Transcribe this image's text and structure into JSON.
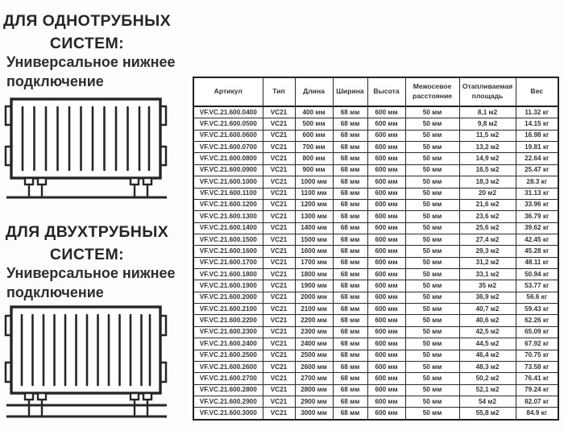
{
  "colors": {
    "text": "#2b2b2b",
    "table_border": "#222222",
    "background": "#fdfdfd"
  },
  "left_panel": {
    "section_one": {
      "title": "ДЛЯ ОДНОТРУБНЫХ СИСТЕМ:",
      "subtitle": "Универсальное нижнее подключение"
    },
    "section_two": {
      "title": "ДЛЯ ДВУХТРУБНЫХ СИСТЕМ:",
      "subtitle": "Универсальное нижнее подключение"
    }
  },
  "table": {
    "headers": [
      "Артикул",
      "Тип",
      "Длина",
      "Ширина",
      "Высота",
      "Межосевое расстояние",
      "Отапливаемая площадь",
      "Вес"
    ],
    "rows": [
      [
        "VF.VC.21.600.0400",
        "VC21",
        "400 мм",
        "68 мм",
        "600 мм",
        "50 мм",
        "8,1 м2",
        "11.32 кг"
      ],
      [
        "VF.VC.21.600.0500",
        "VC21",
        "500 мм",
        "68 мм",
        "600 мм",
        "50 мм",
        "9,8 м2",
        "14.15 кг"
      ],
      [
        "VF.VC.21.600.0600",
        "VC21",
        "600 мм",
        "68 мм",
        "600 мм",
        "50 мм",
        "11,5 м2",
        "16.98 кг"
      ],
      [
        "VF.VC.21.600.0700",
        "VC21",
        "700 мм",
        "68 мм",
        "600 мм",
        "50 мм",
        "13,2 м2",
        "19.81 кг"
      ],
      [
        "VF.VC.21.600.0800",
        "VC21",
        "800 мм",
        "68 мм",
        "600 мм",
        "50 мм",
        "14,9 м2",
        "22.64 кг"
      ],
      [
        "VF.VC.21.600.0900",
        "VC21",
        "900 мм",
        "68 мм",
        "600 мм",
        "50 мм",
        "16,5 м2",
        "25.47 кг"
      ],
      [
        "VF.VC.21.600.1000",
        "VC21",
        "1000 мм",
        "68 мм",
        "600 мм",
        "50 мм",
        "18,3 м2",
        "28.3 кг"
      ],
      [
        "VF.VC.21.600.1100",
        "VC21",
        "1100 мм",
        "68 мм",
        "600 мм",
        "50 мм",
        "20 м2",
        "31.13 кг"
      ],
      [
        "VF.VC.21.600.1200",
        "VC21",
        "1200 мм",
        "68 мм",
        "600 мм",
        "50 мм",
        "21,6 м2",
        "33.96 кг"
      ],
      [
        "VF.VC.21.600.1300",
        "VC21",
        "1300 мм",
        "68 мм",
        "600 мм",
        "50 мм",
        "23,6 м2",
        "36.79 кг"
      ],
      [
        "VF.VC.21.600.1400",
        "VC21",
        "1400 мм",
        "68 мм",
        "600 мм",
        "50 мм",
        "25,6 м2",
        "39.62 кг"
      ],
      [
        "VF.VC.21.600.1500",
        "VC21",
        "1500 мм",
        "68 мм",
        "600 мм",
        "50 мм",
        "27,4 м2",
        "42.45 кг"
      ],
      [
        "VF.VC.21.600.1600",
        "VC21",
        "1600 мм",
        "68 мм",
        "600 мм",
        "50 мм",
        "29,3 м2",
        "45.28 кг"
      ],
      [
        "VF.VC.21.600.1700",
        "VC21",
        "1700 мм",
        "68 мм",
        "600 мм",
        "50 мм",
        "31,2 м2",
        "48.11 кг"
      ],
      [
        "VF.VC.21.600.1800",
        "VC21",
        "1800 мм",
        "68 мм",
        "600 мм",
        "50 мм",
        "33,1 м2",
        "50.94 кг"
      ],
      [
        "VF.VC.21.600.1900",
        "VC21",
        "1900 мм",
        "68 мм",
        "600 мм",
        "50 мм",
        "35 м2",
        "53.77 кг"
      ],
      [
        "VF.VC.21.600.2000",
        "VC21",
        "2000 мм",
        "68 мм",
        "600 мм",
        "50 мм",
        "36,9 м2",
        "56.6 кг"
      ],
      [
        "VF.VC.21.600.2100",
        "VC21",
        "2100 мм",
        "68 мм",
        "600 мм",
        "50 мм",
        "40,7 м2",
        "59.43 кг"
      ],
      [
        "VF.VC.21.600.2200",
        "VC21",
        "2200 мм",
        "68 мм",
        "600 мм",
        "50 мм",
        "40,6 м2",
        "62.26 кг"
      ],
      [
        "VF.VC.21.600.2300",
        "VC21",
        "2300 мм",
        "68 мм",
        "600 мм",
        "50 мм",
        "42,5 м2",
        "65.09 кг"
      ],
      [
        "VF.VC.21.600.2400",
        "VC21",
        "2400 мм",
        "68 мм",
        "600 мм",
        "50 мм",
        "44,5 м2",
        "67.92 кг"
      ],
      [
        "VF.VC.21.600.2500",
        "VC21",
        "2500 мм",
        "68 мм",
        "600 мм",
        "50 мм",
        "46,4 м2",
        "70.75 кг"
      ],
      [
        "VF.VC.21.600.2600",
        "VC21",
        "2600 мм",
        "68 мм",
        "600 мм",
        "50 мм",
        "48,3 м2",
        "73.58 кг"
      ],
      [
        "VF.VC.21.600.2700",
        "VC21",
        "2700 мм",
        "68 мм",
        "600 мм",
        "50 мм",
        "50,2 м2",
        "76.41 кг"
      ],
      [
        "VF.VC.21.600.2800",
        "VC21",
        "2800 мм",
        "68 мм",
        "600 мм",
        "50 мм",
        "52,1 м2",
        "79.24 кг"
      ],
      [
        "VF.VC.21.600.2900",
        "VC21",
        "2900 мм",
        "68 мм",
        "600 мм",
        "50 мм",
        "54 м2",
        "82.07 кг"
      ],
      [
        "VF.VC.21.600.3000",
        "VC21",
        "3000 мм",
        "68 мм",
        "600 мм",
        "50 мм",
        "55,8 м2",
        "84.9 кг"
      ]
    ]
  }
}
